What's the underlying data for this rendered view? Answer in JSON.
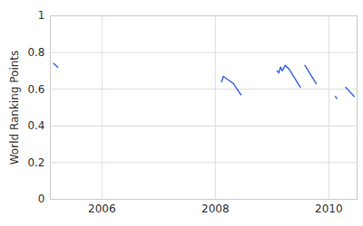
{
  "chart_data": {
    "type": "line",
    "y_label": "World Ranking Points",
    "x": [
      2005.15,
      2005.22,
      2007.6,
      2008.11,
      2008.14,
      2008.32,
      2008.45,
      2008.8,
      2009.09,
      2009.12,
      2009.15,
      2009.18,
      2009.23,
      2009.3,
      2009.5,
      2009.54,
      2009.58,
      2009.78,
      2009.95,
      2010.12,
      2010.14,
      2010.22,
      2010.3,
      2010.45
    ],
    "values": [
      0.74,
      0.72,
      null,
      0.64,
      0.67,
      0.63,
      0.57,
      null,
      0.7,
      0.69,
      0.72,
      0.7,
      0.73,
      0.71,
      0.61,
      null,
      0.73,
      0.63,
      null,
      0.56,
      0.55,
      null,
      0.61,
      0.56
    ],
    "color": "#4169e1",
    "xlim": [
      2005.09,
      2010.5
    ],
    "xticks": [
      2006,
      2008,
      2010
    ],
    "ylim": [
      0,
      1
    ],
    "yticks": [
      0,
      0.2,
      0.4,
      0.6,
      0.8,
      1
    ],
    "grid": true
  }
}
